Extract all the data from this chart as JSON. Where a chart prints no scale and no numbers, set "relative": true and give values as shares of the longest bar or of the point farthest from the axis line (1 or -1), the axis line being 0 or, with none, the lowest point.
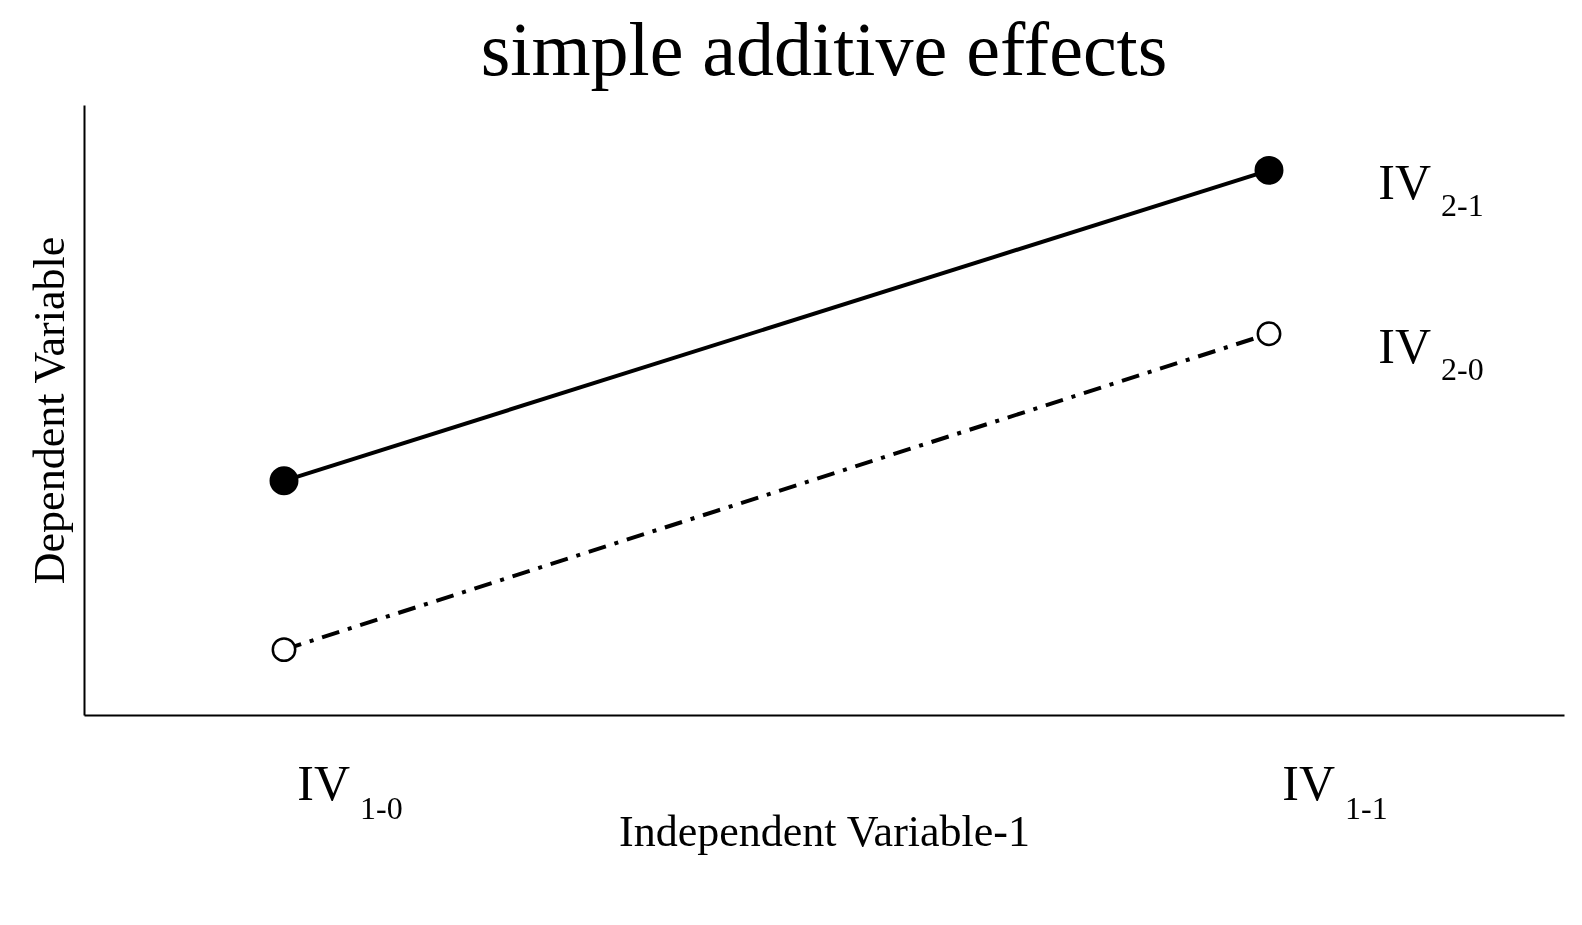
{
  "chart_data": {
    "type": "line",
    "title": "simple additive effects",
    "xlabel": "Independent Variable-1",
    "ylabel": "Dependent Variable",
    "relative": true,
    "marker": "circle",
    "categories": [
      "IV $_{1-0}$",
      "IV $_{1-1}$"
    ],
    "series": [
      {
        "name": "IV $_{2-1}$",
        "color": "#000000",
        "line_style": "solid",
        "values": [
          0.43,
          1
        ]
      },
      {
        "name": "IV $_{2-0}$",
        "color": "#000000",
        "line_style": "dashed",
        "values": [
          0.12,
          0.7
        ]
      }
    ]
  }
}
